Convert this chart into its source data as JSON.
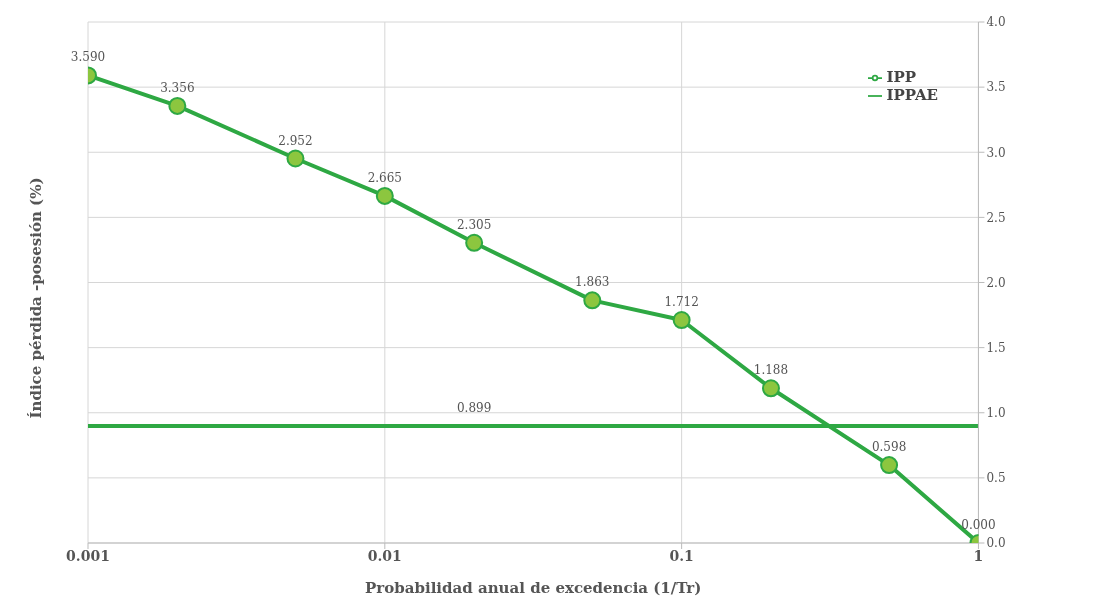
{
  "chart_data": {
    "type": "line",
    "xlabel": "Probabilidad anual de excedencia (1/Tr)",
    "ylabel": "Índice pérdida -posesión (%)",
    "x": [
      0.001,
      0.002,
      0.005,
      0.01,
      0.02,
      0.05,
      0.1,
      0.2,
      0.5,
      1
    ],
    "series": [
      {
        "name": "IPP",
        "color": "#2ea843",
        "marker": "circle",
        "values": [
          3.59,
          3.356,
          2.952,
          2.665,
          2.305,
          1.863,
          1.712,
          1.188,
          0.598,
          0
        ],
        "value_labels": [
          "3.590",
          "3.356",
          "2.952",
          "2.665",
          "2.305",
          "1.863",
          "1.712",
          "1.188",
          "0.598",
          "0.000"
        ]
      },
      {
        "name": "IPPAE",
        "color": "#2ea843",
        "marker": "none",
        "values": [
          0.899,
          0.899,
          0.899,
          0.899,
          0.899,
          0.899,
          0.899,
          0.899,
          0.899,
          0.899
        ],
        "value_labels": [
          null,
          null,
          null,
          null,
          "0.899",
          null,
          null,
          null,
          null,
          null
        ]
      }
    ],
    "log": "x",
    "xlim": [
      0.001,
      1
    ],
    "xticks": [
      0.001,
      0.01,
      0.1,
      1
    ],
    "ylim": [
      0,
      4
    ],
    "yticks": [
      {
        "value": 0,
        "label": "0.0"
      },
      {
        "value": 0.5,
        "label": "0.5"
      },
      {
        "value": 1,
        "label": "1.0"
      },
      {
        "value": 1.5,
        "label": "1.5"
      },
      {
        "value": 2,
        "label": "2.0"
      },
      {
        "value": 2.5,
        "label": "2.5"
      },
      {
        "value": 3,
        "label": "3.0"
      },
      {
        "value": 3.5,
        "label": "3.5"
      },
      {
        "value": 4,
        "label": "4.0"
      }
    ],
    "grid": true,
    "legend": "top right",
    "line_style": "solid"
  }
}
